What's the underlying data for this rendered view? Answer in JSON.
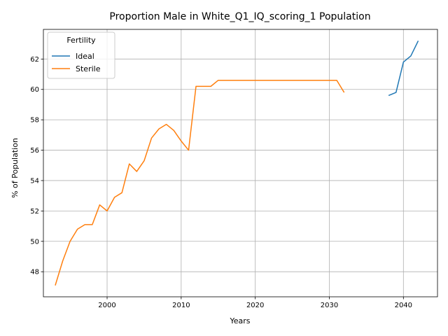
{
  "chart_data": {
    "type": "line",
    "title": "Proportion Male in White_Q1_IQ_scoring_1 Population",
    "xlabel": "Years",
    "ylabel": "% of Population",
    "xlim": [
      1991.4,
      2044.6
    ],
    "ylim": [
      46.35,
      63.95
    ],
    "xticks": [
      2000,
      2010,
      2020,
      2030,
      2040
    ],
    "yticks": [
      48,
      50,
      52,
      54,
      56,
      58,
      60,
      62
    ],
    "grid": true,
    "legend": {
      "title": "Fertility",
      "placement": "top-left"
    },
    "series": [
      {
        "name": "Ideal",
        "color": "#1f77b4",
        "x": [
          2038,
          2039,
          2040,
          2041,
          2042
        ],
        "y": [
          59.6,
          59.8,
          61.8,
          62.2,
          63.2
        ]
      },
      {
        "name": "Sterile",
        "color": "#ff7f0e",
        "x": [
          1993,
          1994,
          1995,
          1996,
          1997,
          1998,
          1999,
          2000,
          2001,
          2002,
          2003,
          2004,
          2005,
          2006,
          2007,
          2008,
          2009,
          2010,
          2011,
          2012,
          2013,
          2014,
          2015,
          2016,
          2017,
          2018,
          2019,
          2020,
          2021,
          2022,
          2023,
          2024,
          2025,
          2026,
          2027,
          2028,
          2029,
          2030,
          2031,
          2032
        ],
        "y": [
          47.1,
          48.7,
          50.0,
          50.8,
          51.1,
          51.1,
          52.4,
          52.0,
          52.9,
          53.2,
          55.1,
          54.6,
          55.3,
          56.8,
          57.4,
          57.7,
          57.3,
          56.6,
          56.0,
          60.2,
          60.2,
          60.2,
          60.6,
          60.6,
          60.6,
          60.6,
          60.6,
          60.6,
          60.6,
          60.6,
          60.6,
          60.6,
          60.6,
          60.6,
          60.6,
          60.6,
          60.6,
          60.6,
          60.6,
          59.8
        ]
      }
    ]
  }
}
